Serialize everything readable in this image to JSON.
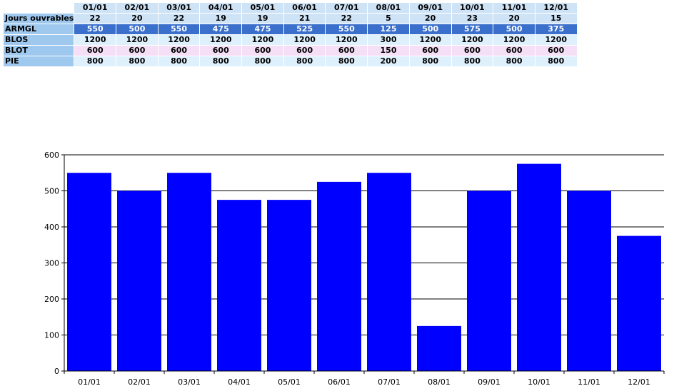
{
  "table": {
    "months": [
      "01/01",
      "02/01",
      "03/01",
      "04/01",
      "05/01",
      "06/01",
      "07/01",
      "08/01",
      "09/01",
      "10/01",
      "11/01",
      "12/01"
    ],
    "rows": [
      {
        "label": "Jours ouvrables",
        "values": [
          "22",
          "20",
          "22",
          "19",
          "19",
          "21",
          "22",
          "5",
          "20",
          "23",
          "20",
          "15"
        ]
      },
      {
        "label": "ARMGL",
        "values": [
          "550",
          "500",
          "550",
          "475",
          "475",
          "525",
          "550",
          "125",
          "500",
          "575",
          "500",
          "375"
        ]
      },
      {
        "label": "BLOS",
        "values": [
          "1200",
          "1200",
          "1200",
          "1200",
          "1200",
          "1200",
          "1200",
          "300",
          "1200",
          "1200",
          "1200",
          "1200"
        ]
      },
      {
        "label": "BLOT",
        "values": [
          "600",
          "600",
          "600",
          "600",
          "600",
          "600",
          "600",
          "150",
          "600",
          "600",
          "600",
          "600"
        ]
      },
      {
        "label": "PIE",
        "values": [
          "800",
          "800",
          "800",
          "800",
          "800",
          "800",
          "800",
          "200",
          "800",
          "800",
          "800",
          "800"
        ]
      }
    ]
  },
  "chart_data": {
    "type": "bar",
    "categories": [
      "01/01",
      "02/01",
      "03/01",
      "04/01",
      "05/01",
      "06/01",
      "07/01",
      "08/01",
      "09/01",
      "10/01",
      "11/01",
      "12/01"
    ],
    "values": [
      550,
      500,
      550,
      475,
      475,
      525,
      550,
      125,
      500,
      575,
      500,
      375
    ],
    "ylim": [
      0,
      600
    ],
    "yticks": [
      0,
      100,
      200,
      300,
      400,
      500,
      600
    ],
    "grid": true,
    "bar_color": "#0000ff"
  }
}
